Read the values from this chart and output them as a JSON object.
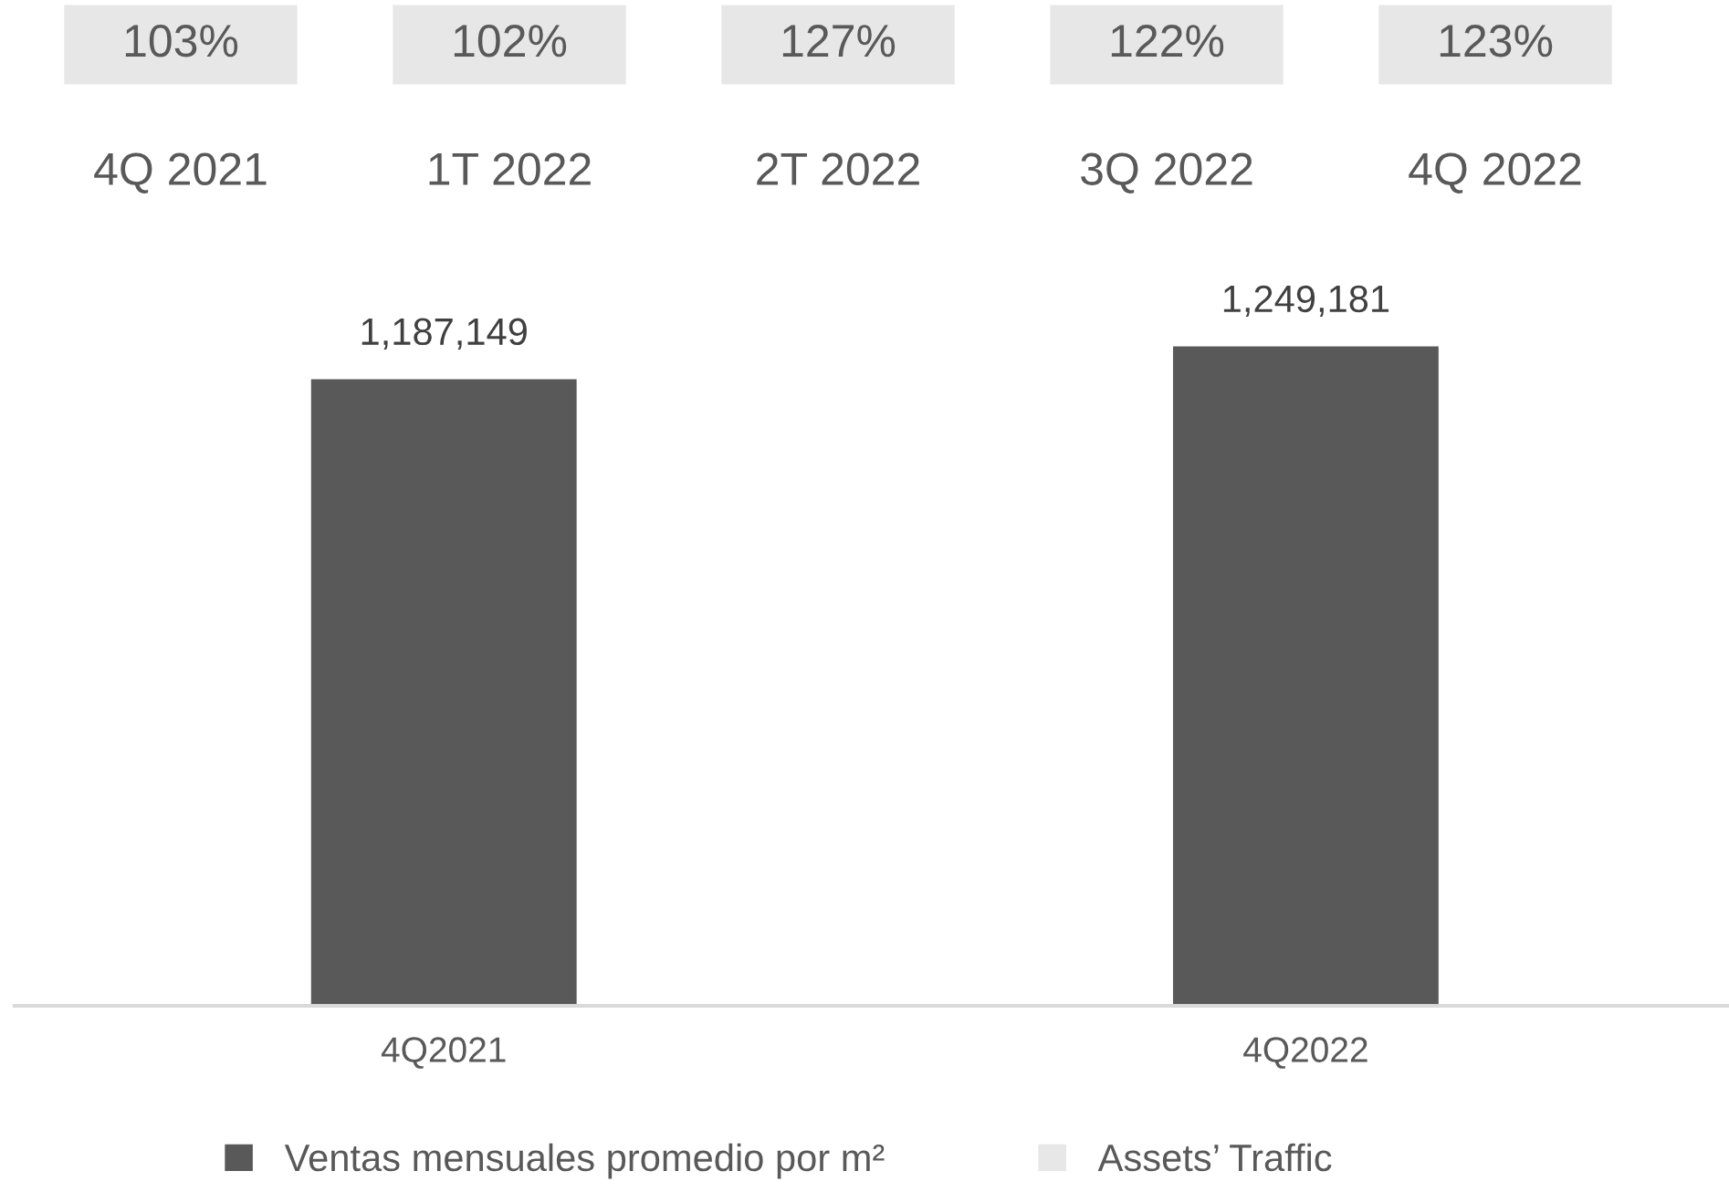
{
  "chart_data": [
    {
      "type": "other",
      "categories": [
        "4Q 2021",
        "1T 2022",
        "2T 2022",
        "3Q 2022",
        "4Q 2022"
      ],
      "series": [
        {
          "name": "Assets’ Traffic",
          "color": "#e7e7e7",
          "values": [
            103,
            102,
            127,
            122,
            123
          ],
          "value_labels": [
            "103%",
            "102%",
            "127%",
            "122%",
            "123%"
          ]
        }
      ],
      "legend": "bottom"
    },
    {
      "type": "bar",
      "categories": [
        "4Q2021",
        "4Q2022"
      ],
      "series": [
        {
          "name": "Ventas mensuales promedio por m²",
          "color": "#595959",
          "values": [
            1187149,
            1249181
          ],
          "value_labels": [
            "1,187,149",
            "1,249,181"
          ]
        }
      ],
      "tick_labels": "x",
      "legend": "bottom"
    }
  ]
}
